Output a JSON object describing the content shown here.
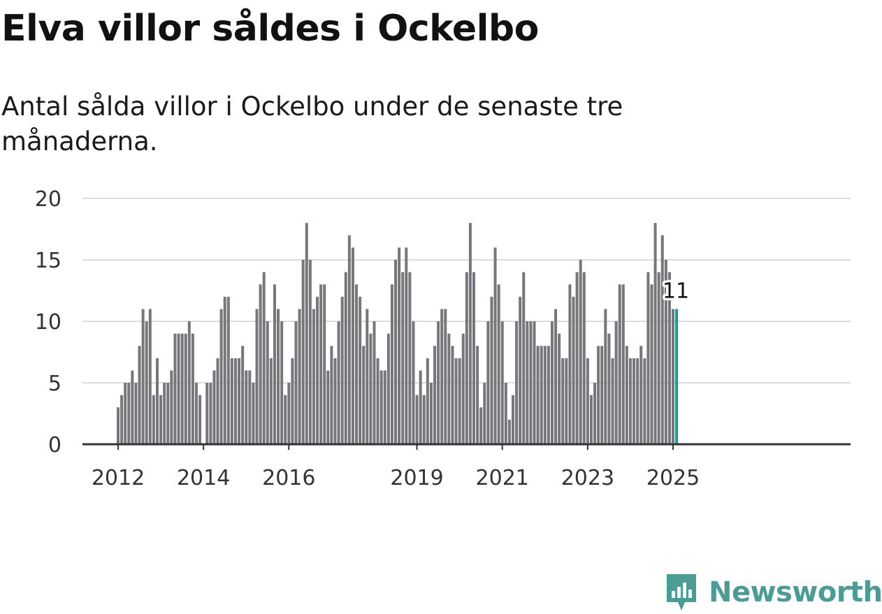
{
  "title": "Elva villor såldes i Ockelbo",
  "subtitle": "Antal sålda villor i Ockelbo under de senaste tre månaderna.",
  "brand": {
    "name": "Newsworthy",
    "icon": "bar-chart-pin-icon",
    "color": "#4a9c94"
  },
  "colors": {
    "bar": "#76767b",
    "highlight": "#1a9a93",
    "grid": "#dcdcdc",
    "axis": "#333333"
  },
  "chart_data": {
    "type": "bar",
    "x_start": "2012-01",
    "x_step": "month",
    "values": [
      3,
      4,
      5,
      5,
      6,
      5,
      8,
      11,
      10,
      11,
      4,
      7,
      4,
      5,
      5,
      6,
      9,
      9,
      9,
      9,
      10,
      9,
      5,
      4,
      0,
      5,
      5,
      6,
      7,
      11,
      12,
      12,
      7,
      7,
      7,
      8,
      6,
      6,
      5,
      11,
      13,
      14,
      10,
      7,
      13,
      11,
      10,
      4,
      5,
      7,
      10,
      11,
      15,
      18,
      15,
      11,
      12,
      13,
      13,
      6,
      8,
      7,
      10,
      12,
      14,
      17,
      16,
      13,
      12,
      8,
      11,
      9,
      10,
      7,
      6,
      6,
      9,
      13,
      15,
      16,
      14,
      16,
      14,
      10,
      4,
      6,
      4,
      7,
      5,
      8,
      10,
      11,
      11,
      9,
      8,
      7,
      7,
      9,
      14,
      18,
      14,
      8,
      3,
      5,
      10,
      12,
      16,
      13,
      10,
      5,
      2,
      4,
      10,
      12,
      14,
      10,
      10,
      10,
      8,
      8,
      8,
      8,
      10,
      11,
      9,
      7,
      7,
      13,
      12,
      14,
      15,
      14,
      7,
      4,
      5,
      8,
      8,
      11,
      9,
      7,
      10,
      13,
      13,
      8,
      7,
      7,
      7,
      8,
      7,
      14,
      13,
      18,
      14,
      17,
      15,
      14,
      11,
      11
    ],
    "highlight_label": "11",
    "x_ticks": [
      "2012",
      "2014",
      "2016",
      "2019",
      "2021",
      "2023",
      "2025"
    ],
    "x_tick_positions": [
      "2012-01",
      "2014-01",
      "2016-01",
      "2019-01",
      "2021-01",
      "2023-01",
      "2025-01"
    ],
    "y_ticks": [
      "0",
      "5",
      "10",
      "15",
      "20"
    ],
    "ylim": [
      0,
      20
    ],
    "xlabel": "",
    "ylabel": "",
    "grid": true
  }
}
